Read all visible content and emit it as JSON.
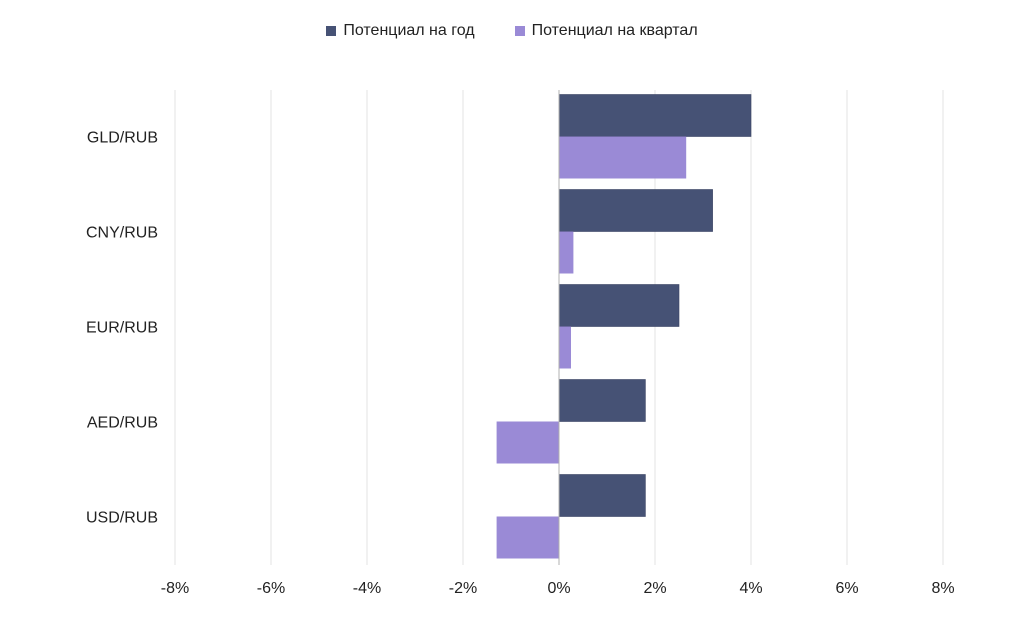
{
  "chart_data": {
    "type": "bar",
    "orientation": "horizontal",
    "categories": [
      "GLD/RUB",
      "CNY/RUB",
      "EUR/RUB",
      "AED/RUB",
      "USD/RUB"
    ],
    "series": [
      {
        "name": "Потенциал на год",
        "color": "#465275",
        "values": [
          4.0,
          3.2,
          2.5,
          1.8,
          1.8
        ]
      },
      {
        "name": "Потенциал на квартал",
        "color": "#9a8ad6",
        "values": [
          2.65,
          0.3,
          0.25,
          -1.3,
          -1.3
        ]
      }
    ],
    "xlim": [
      -8,
      8
    ],
    "xticks": [
      -8,
      -6,
      -4,
      -2,
      0,
      2,
      4,
      6,
      8
    ],
    "xtick_labels": [
      "-8%",
      "-6%",
      "-4%",
      "-2%",
      "0%",
      "2%",
      "4%",
      "6%",
      "8%"
    ],
    "grid": "vertical",
    "legend_position": "top-center"
  }
}
